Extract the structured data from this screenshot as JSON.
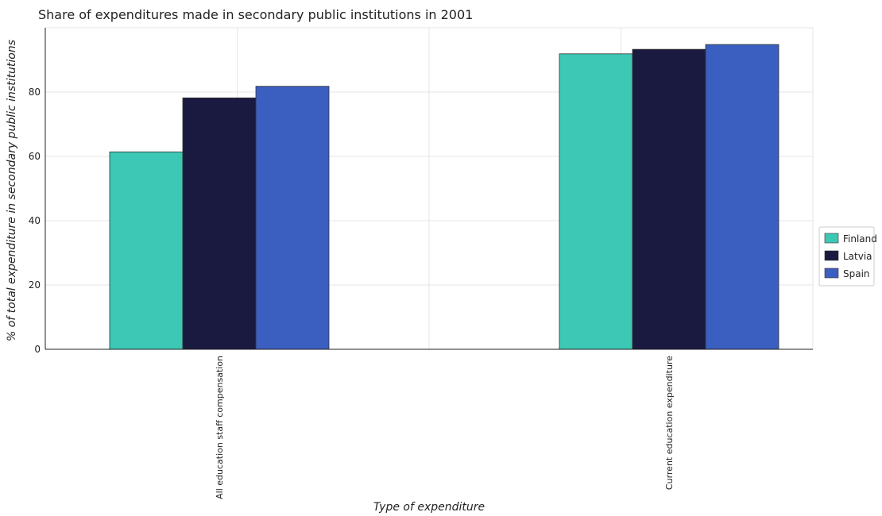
{
  "chart_data": {
    "type": "bar",
    "title": "Share of expenditures made in secondary public institutions in 2001",
    "xlabel": "Type of expenditure",
    "ylabel": "% of total expenditure in secondary public institutions",
    "categories": [
      "All education staff compensation",
      "Current education expenditure"
    ],
    "series": [
      {
        "name": "Finland",
        "color": "#3cc8b4",
        "values": [
          61.4,
          91.9
        ]
      },
      {
        "name": "Latvia",
        "color": "#1a1a40",
        "values": [
          78.2,
          93.3
        ]
      },
      {
        "name": "Spain",
        "color": "#3a5fc0",
        "values": [
          81.8,
          94.8
        ]
      }
    ],
    "ylim": [
      0,
      100
    ],
    "yticks": [
      0,
      20,
      40,
      60,
      80
    ],
    "grid": true,
    "legend_position": "right"
  }
}
